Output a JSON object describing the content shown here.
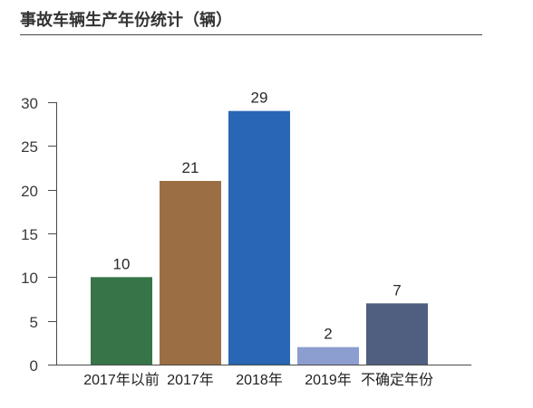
{
  "chart_data": {
    "type": "bar",
    "title": "事故车辆生产年份统计（辆）",
    "categories": [
      "2017年以前",
      "2017年",
      "2018年",
      "2019年",
      "不确定年份"
    ],
    "values": [
      10,
      21,
      29,
      2,
      7
    ],
    "ylim": [
      0,
      30
    ],
    "yticks": [
      0,
      5,
      10,
      15,
      20,
      25,
      30
    ],
    "grid": false,
    "data_labels": true,
    "colors": [
      "#377549",
      "#9b6e44",
      "#2966b4",
      "#8c9ed0",
      "#505e7f"
    ],
    "axis_color": "#4a4a4a"
  }
}
